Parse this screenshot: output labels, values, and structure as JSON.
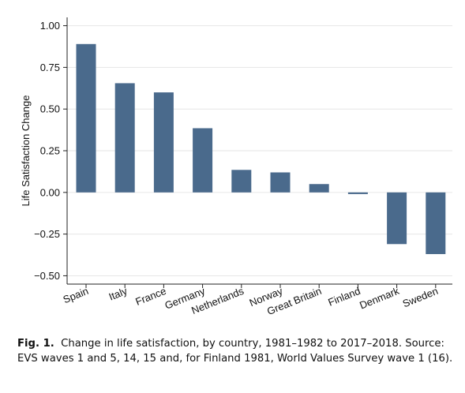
{
  "chart_data": {
    "type": "bar",
    "categories": [
      "Spain",
      "Italy",
      "France",
      "Germany",
      "Netherlands",
      "Norway",
      "Great Britain",
      "Finland",
      "Denmark",
      "Sweden"
    ],
    "values": [
      0.89,
      0.655,
      0.6,
      0.385,
      0.135,
      0.12,
      0.05,
      -0.01,
      -0.31,
      -0.37
    ],
    "ylabel": "Life Satisfaction Change",
    "xlabel": "",
    "ylim": [
      -0.55,
      1.05
    ],
    "yticks": [
      "1.00",
      "0.75",
      "0.50",
      "0.25",
      "0.00",
      "−0.25",
      "−0.50"
    ],
    "bar_color": "#4a6a8c",
    "grid": true
  },
  "caption": {
    "label": "Fig. 1.",
    "text": "Change in life satisfaction, by country, 1981–1982 to 2017–2018. Source: EVS waves 1 and 5, 14, 15 and, for Finland 1981, World Values Survey wave 1 (16)."
  }
}
